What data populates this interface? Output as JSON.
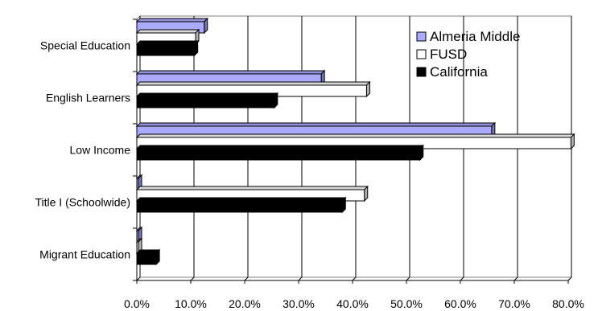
{
  "chart_data": {
    "type": "bar",
    "orientation": "horizontal",
    "style": "3d",
    "categories": [
      "Special Education",
      "English Learners",
      "Low Income",
      "Title I (Schoolwide)",
      "Migrant Education"
    ],
    "series": [
      {
        "name": "Almeria Middle",
        "values": [
          12.5,
          34.2,
          65.8,
          0.0,
          0.0
        ],
        "color": "#aaaaff"
      },
      {
        "name": "FUSD",
        "values": [
          10.9,
          42.6,
          80.5,
          42.2,
          0.3
        ],
        "color": "#ffffff"
      },
      {
        "name": "California",
        "values": [
          10.7,
          25.5,
          52.5,
          38.1,
          3.6
        ],
        "color": "#000000"
      }
    ],
    "x_tick_labels": [
      "0.0%",
      "10.0%",
      "20.0%",
      "30.0%",
      "40.0%",
      "50.0%",
      "60.0%",
      "70.0%",
      "80.0%"
    ],
    "xlim": [
      0,
      80
    ],
    "grid": true,
    "legend_placement": "top-right",
    "title": "",
    "xlabel": "",
    "ylabel": ""
  }
}
